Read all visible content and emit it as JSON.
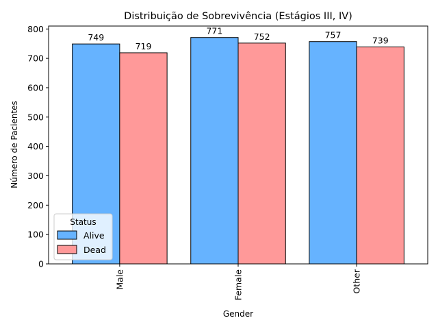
{
  "chart_data": {
    "type": "bar",
    "title": "Distribuição de Sobrevivência (Estágios III, IV)",
    "xlabel": "Gender",
    "ylabel": "Número de Pacientes",
    "categories": [
      "Male",
      "Female",
      "Other"
    ],
    "series": [
      {
        "name": "Alive",
        "values": [
          749,
          771,
          757
        ],
        "color": "#66b3ff"
      },
      {
        "name": "Dead",
        "values": [
          719,
          752,
          739
        ],
        "color": "#ff9999"
      }
    ],
    "ylim": [
      0,
      810
    ],
    "yticks": [
      0,
      100,
      200,
      300,
      400,
      500,
      600,
      700,
      800
    ],
    "grid": false,
    "legend": {
      "title": "Status",
      "position": "lower-left"
    }
  }
}
